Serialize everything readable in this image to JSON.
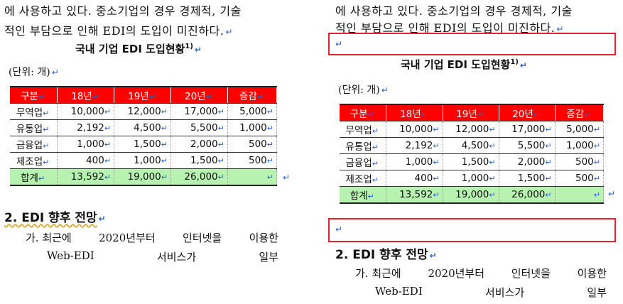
{
  "doc": {
    "para_line1": "에 사용하고 있다. 중소기업의 경우 경제적, 기술",
    "para_line2": "적인 부담으로 인해 EDI의 도입이 미진하다.",
    "table_title": "국내 기업 EDI 도입현황",
    "table_title_sup": "1)",
    "unit": "(단위: 개)",
    "para_mark": "↵",
    "table": {
      "headers": [
        "구분",
        "18년",
        "19년",
        "20년",
        "증감"
      ],
      "rows": [
        [
          "무역업",
          "10,000",
          "12,000",
          "17,000",
          "5,000"
        ],
        [
          "유통업",
          "2,192",
          "4,500",
          "5,500",
          "1,000"
        ],
        [
          "금융업",
          "1,000",
          "1,500",
          "2,000",
          "500"
        ],
        [
          "제조업",
          "400",
          "1,000",
          "1,500",
          "500"
        ]
      ],
      "total": [
        "합계",
        "13,592",
        "19,000",
        "26,000",
        ""
      ]
    },
    "section_heading": "2. EDI 향후 전망",
    "item_line1": [
      "가. 최근에",
      "2020년부터",
      "인터넷을",
      "이용한"
    ],
    "item_line2": [
      "Web-EDI",
      "서비스가",
      "일부"
    ]
  },
  "colors": {
    "header_bg": "#ff0000",
    "total_bg": "#b7f2b0",
    "highlight_box": "#e8212c",
    "para_mark": "#2a62c9"
  }
}
